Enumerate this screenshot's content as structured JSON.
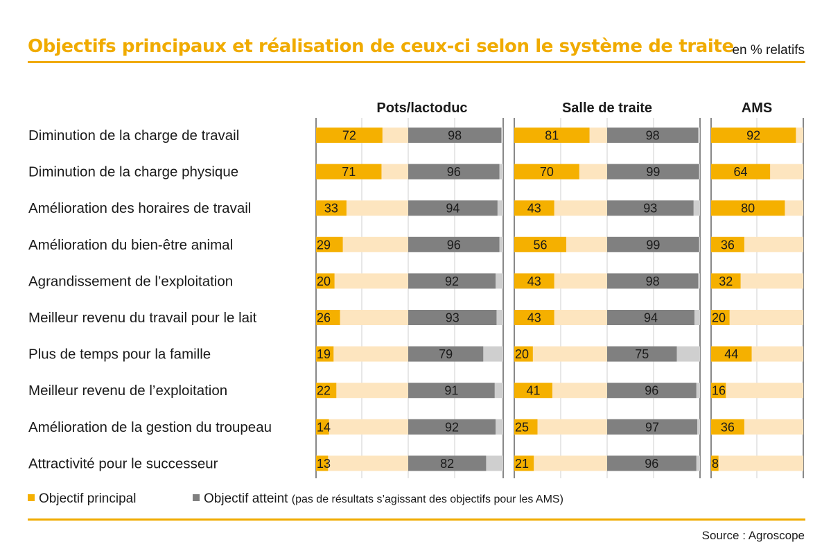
{
  "title": "Objectifs principaux et réalisation de ceux-ci selon le système de traite",
  "unit": "en % relatifs",
  "source": "Source : Agroscope",
  "colors": {
    "objectif": "#f5b000",
    "objectif_bg": "#fde5bf",
    "atteint": "#808080",
    "atteint_bg": "#cfcfcf",
    "rule": "#f0ab00",
    "grid": "#cfcfcf"
  },
  "legend": {
    "objectif_label": "Objectif principal",
    "atteint_label": "Objectif atteint",
    "atteint_note": "(pas de résultats s’agissant des objectifs pour les AMS)"
  },
  "chart_data": {
    "type": "bar",
    "orientation": "horizontal",
    "xlim": [
      0,
      100
    ],
    "categories": [
      "Diminution de la charge de travail",
      "Diminution de la charge physique",
      "Amélioration des horaires de travail",
      "Amélioration du bien-être animal",
      "Agrandissement de l’exploitation",
      "Meilleur revenu du travail pour le lait",
      "Plus de temps pour la famille",
      "Meilleur revenu de l’exploitation",
      "Amélioration de la gestion du troupeau",
      "Attractivité pour le successeur"
    ],
    "groups": [
      {
        "name": "Pots/lactoduc",
        "series": [
          {
            "name": "Objectif principal",
            "values": [
              72,
              71,
              33,
              29,
              20,
              26,
              19,
              22,
              14,
              13
            ]
          },
          {
            "name": "Objectif atteint",
            "values": [
              98,
              96,
              94,
              96,
              92,
              93,
              79,
              91,
              92,
              82
            ]
          }
        ]
      },
      {
        "name": "Salle de traite",
        "series": [
          {
            "name": "Objectif principal",
            "values": [
              81,
              70,
              43,
              56,
              43,
              43,
              20,
              41,
              25,
              21
            ]
          },
          {
            "name": "Objectif atteint",
            "values": [
              98,
              99,
              93,
              99,
              98,
              94,
              75,
              96,
              97,
              96
            ]
          }
        ]
      },
      {
        "name": "AMS",
        "series": [
          {
            "name": "Objectif principal",
            "values": [
              92,
              64,
              80,
              36,
              32,
              20,
              44,
              16,
              36,
              8
            ]
          }
        ]
      }
    ]
  }
}
